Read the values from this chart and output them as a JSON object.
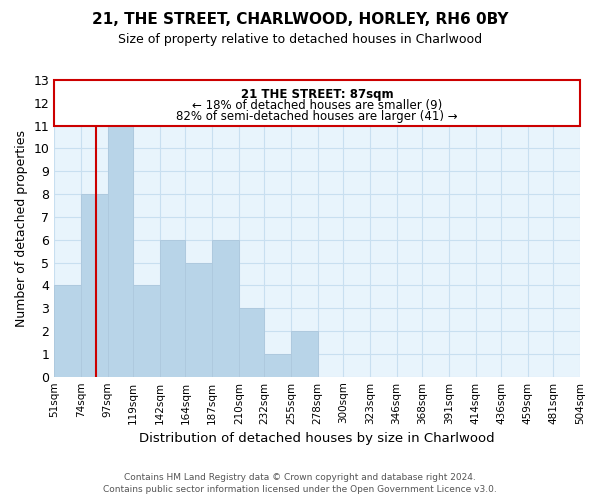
{
  "title": "21, THE STREET, CHARLWOOD, HORLEY, RH6 0BY",
  "subtitle": "Size of property relative to detached houses in Charlwood",
  "xlabel": "Distribution of detached houses by size in Charlwood",
  "ylabel": "Number of detached properties",
  "bin_edges": [
    51,
    74,
    97,
    119,
    142,
    164,
    187,
    210,
    232,
    255,
    278,
    300,
    323,
    346,
    368,
    391,
    414,
    436,
    459,
    481,
    504
  ],
  "bar_heights": [
    4,
    8,
    11,
    4,
    6,
    5,
    6,
    3,
    1,
    2,
    0,
    0,
    0,
    0,
    0,
    0,
    0,
    0,
    0,
    0
  ],
  "bar_color": "#b8d4e8",
  "bar_edgecolor": "#aec9de",
  "grid_color": "#c8dff0",
  "property_sqm": 87,
  "property_line_color": "#cc0000",
  "annotation_line1": "21 THE STREET: 87sqm",
  "annotation_line2": "← 18% of detached houses are smaller (9)",
  "annotation_line3": "82% of semi-detached houses are larger (41) →",
  "annotation_box_facecolor": "#ffffff",
  "annotation_box_edgecolor": "#cc0000",
  "ylim": [
    0,
    13
  ],
  "yticks": [
    0,
    1,
    2,
    3,
    4,
    5,
    6,
    7,
    8,
    9,
    10,
    11,
    12,
    13
  ],
  "footer_line1": "Contains HM Land Registry data © Crown copyright and database right 2024.",
  "footer_line2": "Contains public sector information licensed under the Open Government Licence v3.0.",
  "background_color": "#ffffff",
  "plot_background_color": "#e8f4fc"
}
